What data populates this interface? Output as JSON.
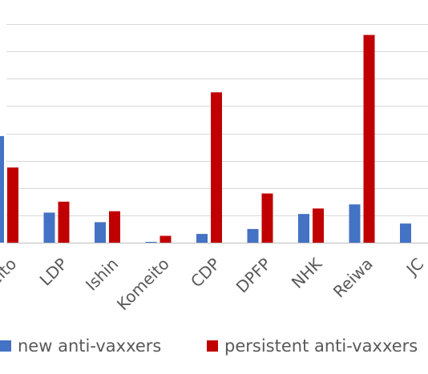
{
  "chart_data": {
    "type": "bar",
    "categories": [
      "Sanseito",
      "LDP",
      "Ishin",
      "Komeito",
      "CDP",
      "DPFP",
      "NHK",
      "Reiwa",
      "JCP"
    ],
    "visible_category_labels": [
      "nseito",
      "LDP",
      "Ishin",
      "Komeito",
      "CDP",
      "DPFP",
      "NHK",
      "Reiwa",
      "JC"
    ],
    "series": [
      {
        "name": "new anti-vaxxers",
        "color": "#4472C4",
        "values": [
          39,
          11,
          7.5,
          0.3,
          3.2,
          5,
          10.5,
          14,
          7
        ]
      },
      {
        "name": "persistent anti-vaxxers",
        "color": "#C00000",
        "values": [
          27.5,
          15,
          11.5,
          2.5,
          55,
          18,
          12.5,
          76,
          null
        ]
      }
    ],
    "ylim": [
      0,
      80
    ],
    "grid": true,
    "legend_position": "bottom"
  }
}
